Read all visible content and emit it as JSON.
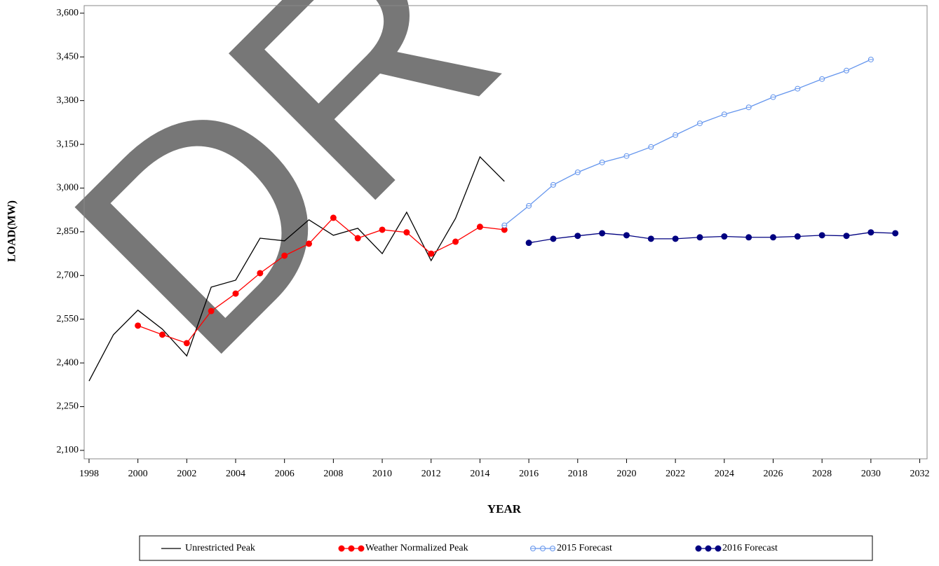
{
  "chart_data": {
    "type": "line",
    "watermark": "DR",
    "x_label": "YEAR",
    "y_label": "LOAD(MW)",
    "xlim": [
      1997.8,
      2032.3
    ],
    "xticks": [
      1998,
      2000,
      2002,
      2004,
      2006,
      2008,
      2010,
      2012,
      2014,
      2016,
      2018,
      2020,
      2022,
      2024,
      2026,
      2028,
      2030,
      2032
    ],
    "ylim": [
      2071,
      3626
    ],
    "yticks": [
      {
        "value": 2100,
        "label": "2,100"
      },
      {
        "value": 2250,
        "label": "2,250"
      },
      {
        "value": 2400,
        "label": "2,400"
      },
      {
        "value": 2550,
        "label": "2,550"
      },
      {
        "value": 2700,
        "label": "2,700"
      },
      {
        "value": 2850,
        "label": "2,850"
      },
      {
        "value": 3000,
        "label": "3,000"
      },
      {
        "value": 3150,
        "label": "3,150"
      },
      {
        "value": 3300,
        "label": "3,300"
      },
      {
        "value": 3450,
        "label": "3,450"
      },
      {
        "value": 3600,
        "label": "3,600"
      }
    ],
    "legend": "bottom",
    "series": [
      {
        "name": "Unrestricted Peak",
        "color": "#000000",
        "marker": "none",
        "x": [
          1998,
          1999,
          2000,
          2001,
          2002,
          2003,
          2004,
          2005,
          2006,
          2007,
          2008,
          2009,
          2010,
          2011,
          2012,
          2013,
          2014,
          2015
        ],
        "values": [
          2338,
          2497,
          2581,
          2516,
          2424,
          2660,
          2684,
          2828,
          2819,
          2891,
          2838,
          2862,
          2775,
          2917,
          2751,
          2896,
          3107,
          3023
        ]
      },
      {
        "name": "Weather Normalized Peak",
        "color": "#ff0000",
        "marker": "filled",
        "x": [
          2000,
          2001,
          2002,
          2003,
          2004,
          2005,
          2006,
          2007,
          2008,
          2009,
          2010,
          2011,
          2012,
          2013,
          2014,
          2015
        ],
        "values": [
          2528,
          2497,
          2468,
          2578,
          2638,
          2708,
          2768,
          2809,
          2898,
          2828,
          2857,
          2848,
          2775,
          2816,
          2867,
          2857
        ]
      },
      {
        "name": "2015 Forecast",
        "color": "#6495ed",
        "marker": "open",
        "x": [
          2015,
          2016,
          2017,
          2018,
          2019,
          2020,
          2021,
          2022,
          2023,
          2024,
          2025,
          2026,
          2027,
          2028,
          2029,
          2030
        ],
        "values": [
          2872,
          2939,
          3011,
          3054,
          3088,
          3110,
          3141,
          3182,
          3222,
          3253,
          3277,
          3312,
          3341,
          3374,
          3403,
          3441
        ]
      },
      {
        "name": "2016 Forecast",
        "color": "#000080",
        "marker": "filled",
        "x": [
          2016,
          2017,
          2018,
          2019,
          2020,
          2021,
          2022,
          2023,
          2024,
          2025,
          2026,
          2027,
          2028,
          2029,
          2030,
          2031
        ],
        "values": [
          2812,
          2826,
          2836,
          2845,
          2838,
          2826,
          2826,
          2831,
          2834,
          2831,
          2831,
          2834,
          2838,
          2836,
          2848,
          2845
        ]
      }
    ]
  }
}
